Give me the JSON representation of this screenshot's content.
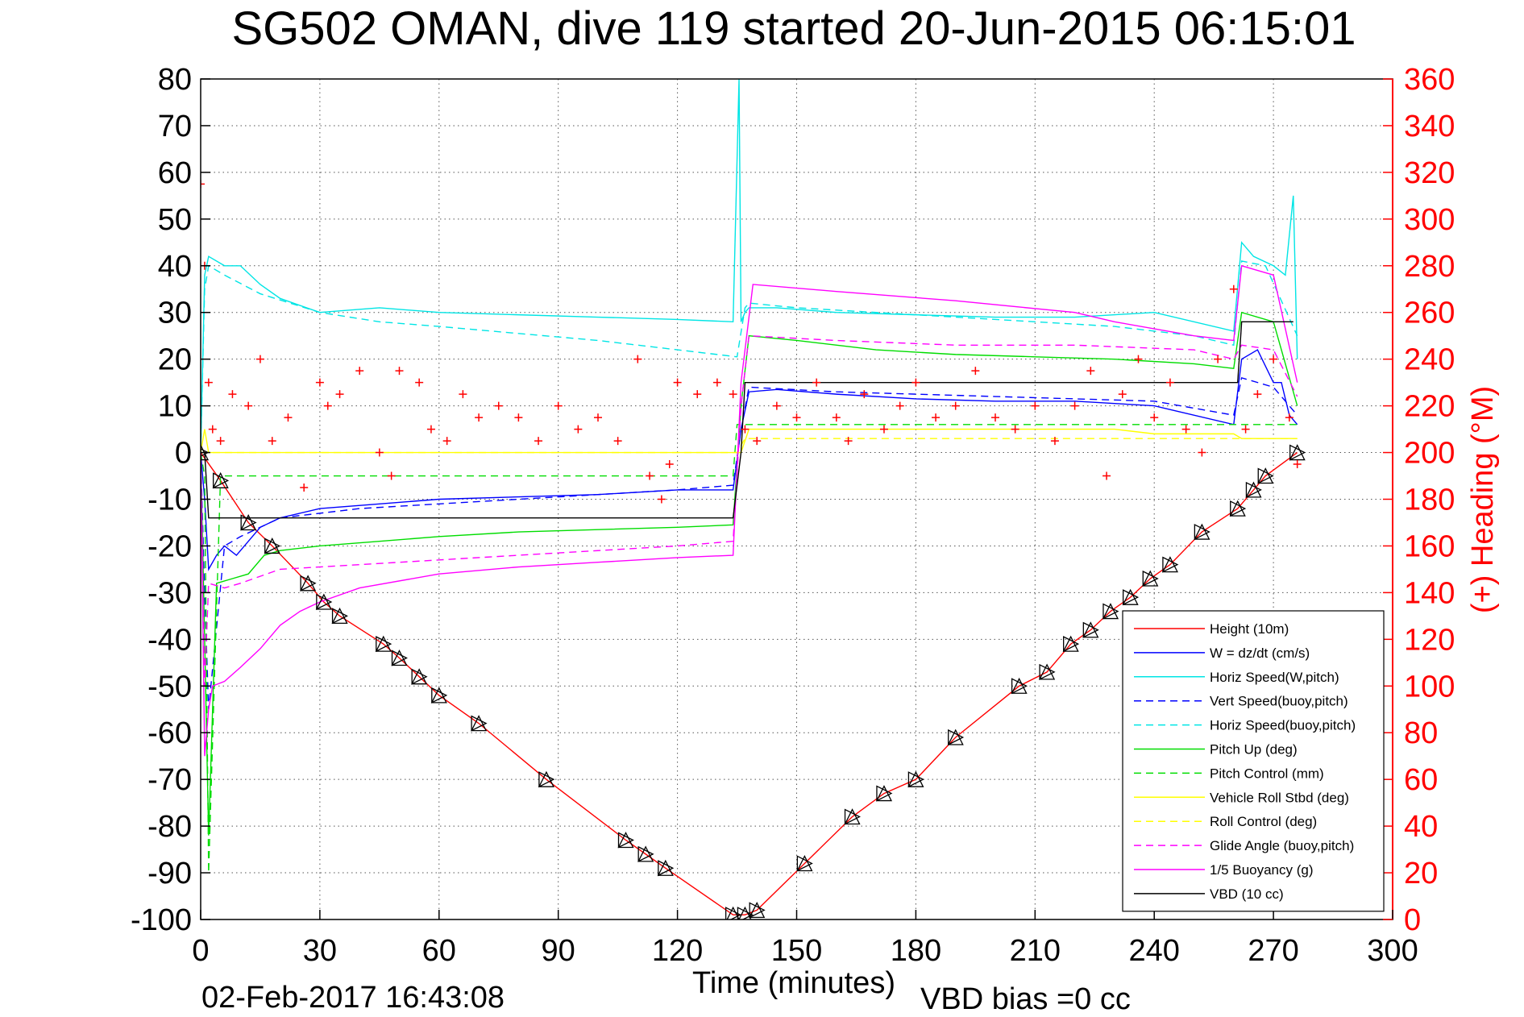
{
  "chart_data": {
    "type": "line",
    "title": "SG502 OMAN, dive 119 started 20-Jun-2015 06:15:01",
    "xlabel": "Time (minutes)",
    "ylabel": "",
    "y2label": "(+) Heading (°M)",
    "xlim": [
      0,
      300
    ],
    "ylim": [
      -100,
      80
    ],
    "y2lim": [
      0,
      360
    ],
    "xticks": [
      "0",
      "30",
      "60",
      "90",
      "120",
      "150",
      "180",
      "210",
      "240",
      "270",
      "300"
    ],
    "yticks": [
      "80",
      "70",
      "60",
      "50",
      "40",
      "30",
      "20",
      "10",
      "0",
      "-10",
      "-20",
      "-30",
      "-40",
      "-50",
      "-60",
      "-70",
      "-80",
      "-90",
      "-100"
    ],
    "y2ticks": [
      "360",
      "340",
      "320",
      "300",
      "280",
      "260",
      "240",
      "220",
      "200",
      "180",
      "160",
      "140",
      "120",
      "100",
      "80",
      "60",
      "40",
      "20",
      "0"
    ],
    "grid": true,
    "legend_position": "bottom-right",
    "footer_left": "02-Feb-2017 16:43:08",
    "footer_right": "VBD bias =0 cc",
    "series": [
      {
        "name": "Height (10m)",
        "color": "#ff0000",
        "style": "solid",
        "x": [
          0,
          5,
          12,
          18,
          27,
          31,
          35,
          46,
          50,
          55,
          60,
          70,
          87,
          107,
          112,
          117,
          134,
          137,
          140,
          152,
          164,
          172,
          180,
          190,
          206,
          213,
          219,
          224,
          229,
          234,
          239,
          244,
          252,
          261,
          265,
          268,
          276
        ],
        "y": [
          0,
          -6,
          -15,
          -20,
          -28,
          -32,
          -35,
          -41,
          -44,
          -48,
          -52,
          -58,
          -70,
          -83,
          -86,
          -89,
          -99,
          -99,
          -98,
          -88,
          -78,
          -73,
          -70,
          -61,
          -50,
          -47,
          -41,
          -38,
          -34,
          -31,
          -27,
          -24,
          -17,
          -12,
          -8,
          -5,
          0
        ]
      },
      {
        "name": "W = dz/dt (cm/s)",
        "color": "#0000ff",
        "style": "solid",
        "x": [
          0,
          1,
          2,
          4,
          6,
          9,
          12,
          15,
          20,
          30,
          45,
          60,
          80,
          100,
          120,
          134,
          136,
          138,
          145,
          160,
          180,
          200,
          220,
          240,
          260,
          262,
          266,
          270,
          272,
          274,
          276
        ],
        "y": [
          0,
          -10,
          -25,
          -22,
          -20,
          -22,
          -19,
          -16,
          -14,
          -12,
          -11,
          -10,
          -9.5,
          -9,
          -8,
          -8,
          5,
          13,
          13.5,
          12.5,
          11.5,
          11,
          11,
          10,
          6,
          20,
          22,
          15,
          15,
          8,
          6
        ]
      },
      {
        "name": "Horiz Speed(W,pitch)",
        "color": "#00e5e5",
        "style": "solid",
        "x": [
          0,
          1,
          2,
          6,
          10,
          15,
          20,
          30,
          45,
          60,
          80,
          100,
          120,
          134,
          135.5,
          136,
          137,
          138,
          145,
          160,
          180,
          200,
          220,
          240,
          260,
          262,
          265,
          270,
          273,
          275,
          276
        ],
        "y": [
          0,
          38,
          42,
          40,
          40,
          36,
          33,
          30,
          31,
          30,
          29.5,
          29,
          28.5,
          28,
          80,
          28,
          30,
          31,
          31,
          30,
          29.5,
          29,
          29,
          30,
          26,
          45,
          42,
          40,
          38,
          55,
          20
        ]
      },
      {
        "name": "Vert Speed(buoy,pitch)",
        "color": "#0000ff",
        "style": "dashed",
        "x": [
          0,
          1,
          2,
          6,
          10,
          15,
          20,
          40,
          60,
          80,
          100,
          120,
          134,
          136,
          138,
          160,
          200,
          240,
          260,
          262,
          270,
          276
        ],
        "y": [
          0,
          -30,
          -55,
          -20,
          -18,
          -16,
          -14,
          -12,
          -11,
          -10,
          -9,
          -8,
          -7,
          5,
          14,
          13,
          12,
          11,
          8,
          16,
          14,
          8
        ]
      },
      {
        "name": "Horiz Speed(buoy,pitch)",
        "color": "#00e5e5",
        "style": "dashed",
        "x": [
          0,
          1,
          2,
          6,
          15,
          30,
          45,
          60,
          80,
          100,
          120,
          135,
          137,
          138,
          150,
          170,
          190,
          210,
          230,
          250,
          260,
          262,
          268,
          276
        ],
        "y": [
          0,
          35,
          40,
          38,
          34,
          30,
          28,
          27,
          25.5,
          24,
          22,
          20.5,
          31,
          32,
          31,
          30,
          29,
          28,
          27,
          25,
          23,
          41,
          40,
          25
        ]
      },
      {
        "name": "Pitch Up (deg)",
        "color": "#00dd00",
        "style": "solid",
        "x": [
          0,
          1,
          2,
          4,
          8,
          12,
          16,
          20,
          30,
          45,
          60,
          80,
          100,
          120,
          134,
          136,
          138,
          150,
          170,
          190,
          210,
          230,
          250,
          260,
          262,
          270,
          276
        ],
        "y": [
          0,
          -40,
          -82,
          -28,
          -27,
          -26,
          -22,
          -21,
          -20,
          -19,
          -18,
          -17,
          -16.5,
          -16,
          -15.5,
          10,
          25,
          24,
          22,
          21,
          20.5,
          20,
          19,
          18,
          30,
          28,
          10
        ]
      },
      {
        "name": "Pitch Control (mm)",
        "color": "#00dd00",
        "style": "dashed",
        "x": [
          0,
          1,
          2,
          5,
          134,
          135,
          137,
          260,
          261,
          276
        ],
        "y": [
          0,
          -5,
          -90,
          -5,
          -5,
          6,
          6,
          6,
          6,
          6
        ]
      },
      {
        "name": "Vehicle Roll Stbd (deg)",
        "color": "#ffff00",
        "style": "solid",
        "x": [
          0,
          1,
          2,
          20,
          40,
          60,
          80,
          100,
          120,
          134,
          136,
          138,
          160,
          200,
          230,
          240,
          260,
          262,
          276
        ],
        "y": [
          0,
          5,
          0,
          0,
          0,
          0,
          0,
          0,
          0,
          0,
          0,
          5,
          5,
          5,
          5,
          4,
          4,
          3,
          3
        ]
      },
      {
        "name": "Roll Control (deg)",
        "color": "#ffff00",
        "style": "dashed",
        "x": [
          0,
          1,
          2,
          134,
          135,
          137,
          276
        ],
        "y": [
          0,
          0,
          0,
          0,
          0,
          3,
          3
        ]
      },
      {
        "name": "Glide Angle (buoy,pitch)",
        "color": "#ff00ff",
        "style": "dashed",
        "x": [
          0,
          1,
          2,
          6,
          10,
          20,
          40,
          60,
          80,
          100,
          120,
          134,
          136,
          138,
          160,
          190,
          220,
          250,
          260,
          262,
          270,
          276
        ],
        "y": [
          0,
          -50,
          -28,
          -29,
          -28,
          -25,
          -24,
          -23,
          -22,
          -21,
          -20,
          -19,
          10,
          25,
          24,
          23,
          23,
          22,
          20,
          23,
          22,
          12
        ]
      },
      {
        "name": "1/5 Buoyancy (g)",
        "color": "#ff00ff",
        "style": "solid",
        "x": [
          0,
          1,
          2,
          3,
          6,
          10,
          15,
          20,
          25,
          30,
          40,
          60,
          80,
          100,
          120,
          134,
          136,
          139,
          160,
          190,
          220,
          230,
          250,
          260,
          262,
          270,
          276
        ],
        "y": [
          0,
          -65,
          -55,
          -50,
          -49,
          -46,
          -42,
          -37,
          -34,
          -32,
          -29,
          -26,
          -24.5,
          -23.5,
          -22.5,
          -22,
          15,
          36,
          34.5,
          32.5,
          30,
          28,
          25,
          24,
          40,
          38,
          15
        ]
      },
      {
        "name": "VBD (10 cc)",
        "color": "#000000",
        "style": "solid",
        "x": [
          0,
          1,
          2,
          134,
          136,
          137,
          261,
          262,
          275
        ],
        "y": [
          0,
          0,
          -14,
          -14,
          0,
          15,
          15,
          28,
          28
        ]
      }
    ],
    "heading": {
      "name": "(+) Heading (°M)",
      "color": "#ff0000",
      "x": [
        0,
        1,
        2,
        3,
        5,
        8,
        12,
        15,
        18,
        22,
        26,
        30,
        32,
        35,
        40,
        45,
        48,
        50,
        55,
        58,
        62,
        66,
        70,
        75,
        80,
        85,
        90,
        95,
        100,
        105,
        110,
        113,
        116,
        118,
        120,
        125,
        130,
        134,
        137,
        140,
        145,
        150,
        155,
        160,
        163,
        167,
        172,
        176,
        180,
        185,
        190,
        195,
        200,
        205,
        210,
        215,
        220,
        224,
        228,
        232,
        236,
        240,
        244,
        248,
        252,
        256,
        260,
        263,
        266,
        270,
        274,
        276
      ],
      "y": [
        315,
        280,
        230,
        210,
        205,
        225,
        220,
        240,
        205,
        215,
        185,
        230,
        220,
        225,
        235,
        200,
        190,
        235,
        230,
        210,
        205,
        225,
        215,
        220,
        215,
        205,
        220,
        210,
        215,
        205,
        240,
        190,
        180,
        195,
        230,
        225,
        230,
        225,
        210,
        205,
        220,
        215,
        230,
        215,
        205,
        225,
        210,
        220,
        230,
        215,
        220,
        235,
        215,
        210,
        220,
        205,
        220,
        235,
        190,
        225,
        240,
        215,
        230,
        210,
        200,
        240,
        270,
        210,
        225,
        240,
        215,
        195
      ]
    }
  }
}
